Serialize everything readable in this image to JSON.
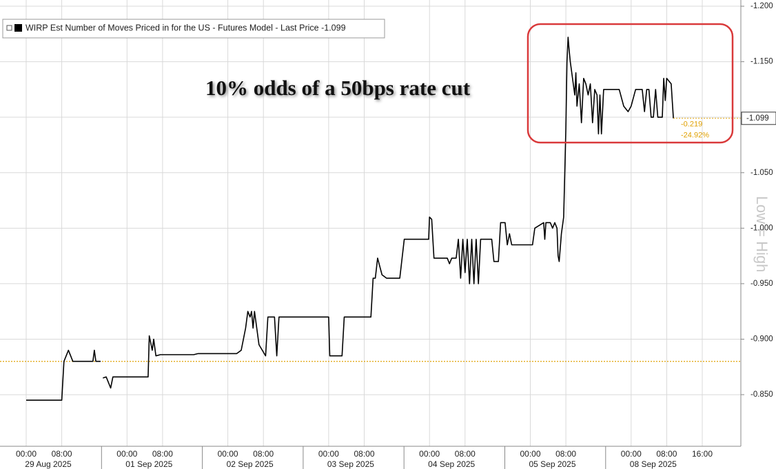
{
  "chart_data": {
    "type": "line",
    "series": [
      {
        "name": "WIRP Est Number of Moves Priced in for the US - Futures Model - Last Price -1.099",
        "color": "#000000",
        "values": [
          -0.845,
          -0.845,
          -0.88,
          -0.89,
          -0.88,
          -0.88,
          -0.89,
          -0.88,
          -0.88,
          null,
          -0.865,
          -0.866,
          -0.856,
          -0.866,
          -0.866,
          -0.903,
          -0.89,
          -0.9,
          -0.885,
          -0.886,
          -0.886,
          -0.887,
          -0.887,
          -0.89,
          -0.91,
          -0.925,
          -0.92,
          -0.925,
          -0.91,
          -0.925,
          -0.895,
          -0.885,
          -0.92,
          -0.92,
          -0.885,
          -0.92,
          -0.92,
          -0.885,
          -0.885,
          -0.92,
          -0.92,
          -0.955,
          -0.955,
          -0.973,
          -0.958,
          -0.955,
          -0.955,
          -0.99,
          -0.99,
          -1.01,
          -1.008,
          -0.973,
          -0.973,
          -0.968,
          -0.973,
          -0.973,
          -0.99,
          -0.955,
          -0.99,
          -0.96,
          -0.99,
          -0.95,
          -0.99,
          -0.95,
          -0.99,
          -0.95,
          -0.99,
          -0.99,
          -0.97,
          -0.97,
          -1.005,
          -1.005,
          -0.985,
          -0.995,
          -0.985,
          -0.985,
          -1.0,
          -1.005,
          -0.99,
          -1.005,
          -1.005,
          -1.0,
          -1.005,
          -1.0,
          -0.975,
          -0.97,
          -0.995,
          -1.01,
          -1.09,
          -1.15,
          -1.172,
          -1.16,
          -1.15,
          -1.12,
          -1.14,
          -1.11,
          -1.13,
          -1.095,
          -1.135,
          -1.13,
          -1.12,
          -1.13,
          -1.095,
          -1.125,
          -1.12,
          -1.085,
          -1.12,
          -1.085,
          -1.125,
          -1.125,
          -1.11,
          -1.105,
          -1.11,
          -1.125,
          -1.125,
          -1.105,
          -1.125,
          -1.125,
          -1.1,
          -1.1,
          -1.125,
          -1.1,
          -1.1,
          -1.135,
          -1.115,
          -1.135,
          -1.13,
          -1.099
        ]
      }
    ],
    "x": [
      "29 Aug 2025 00:00",
      "29 Aug 2025 08:00",
      "29 Aug 2025 08:30",
      "29 Aug 2025 09:30",
      "29 Aug 2025 10:30",
      "29 Aug 2025 15:00",
      "29 Aug 2025 15:20",
      "29 Aug 2025 15:40",
      "29 Aug 2025 16:45",
      null,
      "29 Aug 2025 17:15",
      "29 Aug 2025 18:00",
      "29 Aug 2025 19:00",
      "29 Aug 2025 19:30",
      "01 Sep 2025 04:45",
      "01 Sep 2025 05:00",
      "01 Sep 2025 05:40",
      "01 Sep 2025 06:00",
      "01 Sep 2025 06:30",
      "01 Sep 2025 07:30",
      "01 Sep 2025 15:00",
      "01 Sep 2025 16:00",
      "02 Sep 2025 02:00",
      "02 Sep 2025 03:00",
      "02 Sep 2025 04:00",
      "02 Sep 2025 04:30",
      "02 Sep 2025 05:00",
      "02 Sep 2025 05:20",
      "02 Sep 2025 05:40",
      "02 Sep 2025 06:00",
      "02 Sep 2025 07:00",
      "02 Sep 2025 08:30",
      "02 Sep 2025 09:00",
      "02 Sep 2025 10:30",
      "02 Sep 2025 11:00",
      "02 Sep 2025 11:30",
      "03 Sep 2025 00:00",
      "03 Sep 2025 00:15",
      "03 Sep 2025 03:00",
      "03 Sep 2025 03:30",
      "03 Sep 2025 09:30",
      "03 Sep 2025 10:00",
      "03 Sep 2025 10:30",
      "03 Sep 2025 11:00",
      "03 Sep 2025 12:00",
      "03 Sep 2025 13:00",
      "03 Sep 2025 16:00",
      "03 Sep 2025 17:00",
      "03 Sep 2025 22:30",
      "04 Sep 2025 00:00",
      "04 Sep 2025 00:30",
      "04 Sep 2025 01:00",
      "04 Sep 2025 04:00",
      "04 Sep 2025 04:30",
      "04 Sep 2025 05:00",
      "04 Sep 2025 06:00",
      "04 Sep 2025 06:30",
      "04 Sep 2025 07:00",
      "04 Sep 2025 07:30",
      "04 Sep 2025 08:00",
      "04 Sep 2025 08:30",
      "04 Sep 2025 09:00",
      "04 Sep 2025 09:30",
      "04 Sep 2025 10:00",
      "04 Sep 2025 10:30",
      "04 Sep 2025 11:00",
      "04 Sep 2025 11:30",
      "04 Sep 2025 14:00",
      "04 Sep 2025 14:30",
      "04 Sep 2025 15:30",
      "04 Sep 2025 16:00",
      "04 Sep 2025 17:00",
      "04 Sep 2025 17:30",
      "04 Sep 2025 18:00",
      "04 Sep 2025 18:30",
      "05 Sep 2025 00:30",
      "05 Sep 2025 01:00",
      "05 Sep 2025 03:00",
      "05 Sep 2025 03:15",
      "05 Sep 2025 03:30",
      "05 Sep 2025 04:30",
      "05 Sep 2025 05:00",
      "05 Sep 2025 05:30",
      "05 Sep 2025 06:00",
      "05 Sep 2025 06:15",
      "05 Sep 2025 06:30",
      "05 Sep 2025 07:00",
      "05 Sep 2025 07:30",
      "05 Sep 2025 08:00",
      "05 Sep 2025 08:15",
      "05 Sep 2025 08:30",
      "05 Sep 2025 08:45",
      "05 Sep 2025 09:00",
      "05 Sep 2025 10:00",
      "05 Sep 2025 10:15",
      "05 Sep 2025 10:30",
      "05 Sep 2025 11:00",
      "05 Sep 2025 11:30",
      "05 Sep 2025 12:00",
      "05 Sep 2025 12:30",
      "05 Sep 2025 13:00",
      "05 Sep 2025 13:30",
      "05 Sep 2025 14:00",
      "05 Sep 2025 14:30",
      "05 Sep 2025 15:00",
      "05 Sep 2025 15:20",
      "05 Sep 2025 15:40",
      "05 Sep 2025 16:00",
      "05 Sep 2025 16:30",
      "05 Sep 2025 20:00",
      "05 Sep 2025 21:00",
      "05 Sep 2025 22:00",
      "08 Sep 2025 00:00",
      "08 Sep 2025 01:00",
      "08 Sep 2025 02:30",
      "08 Sep 2025 03:00",
      "08 Sep 2025 03:30",
      "08 Sep 2025 04:00",
      "08 Sep 2025 04:30",
      "08 Sep 2025 05:00",
      "08 Sep 2025 05:30",
      "08 Sep 2025 06:00",
      "08 Sep 2025 07:00",
      "08 Sep 2025 07:20",
      "08 Sep 2025 07:40",
      "08 Sep 2025 08:00",
      "08 Sep 2025 09:00",
      "08 Sep 2025 09:30"
    ],
    "days": [
      "29 Aug 2025",
      "01 Sep 2025",
      "02 Sep 2025",
      "03 Sep 2025",
      "04 Sep 2025",
      "05 Sep 2025",
      "08 Sep 2025"
    ],
    "xticks": [
      {
        "value": "29 Aug 2025 00:00",
        "label": "00:00"
      },
      {
        "value": "29 Aug 2025 08:00",
        "label": "08:00"
      },
      {
        "value": "01 Sep 2025 00:00",
        "label": "00:00"
      },
      {
        "value": "01 Sep 2025 08:00",
        "label": "08:00"
      },
      {
        "value": "02 Sep 2025 00:00",
        "label": "00:00"
      },
      {
        "value": "02 Sep 2025 08:00",
        "label": "08:00"
      },
      {
        "value": "03 Sep 2025 00:00",
        "label": "00:00"
      },
      {
        "value": "03 Sep 2025 08:00",
        "label": "08:00"
      },
      {
        "value": "04 Sep 2025 00:00",
        "label": "00:00"
      },
      {
        "value": "04 Sep 2025 08:00",
        "label": "08:00"
      },
      {
        "value": "05 Sep 2025 00:00",
        "label": "00:00"
      },
      {
        "value": "05 Sep 2025 08:00",
        "label": "08:00"
      },
      {
        "value": "08 Sep 2025 00:00",
        "label": "00:00"
      },
      {
        "value": "08 Sep 2025 08:00",
        "label": "08:00"
      },
      {
        "value": "08 Sep 2025 16:00",
        "label": "16:00"
      }
    ],
    "ylim": [
      -0.8035,
      -1.2056
    ],
    "yticks": [
      {
        "value": -1.2,
        "label": "-1.200"
      },
      {
        "value": -1.15,
        "label": "-1.150"
      },
      {
        "value": -1.1,
        "label": "-1.100"
      },
      {
        "value": -1.05,
        "label": "-1.050"
      },
      {
        "value": -1.0,
        "label": "-1.000"
      },
      {
        "value": -0.95,
        "label": "-0.950"
      },
      {
        "value": -0.9,
        "label": "-0.900"
      },
      {
        "value": -0.85,
        "label": "-0.850"
      }
    ],
    "grid": true,
    "reference_line": {
      "value": -0.88,
      "color": "#e0a000"
    },
    "change_labels": [
      "-0.219",
      "-24.92%"
    ],
    "annotation": "10% odds of a 50bps rate cut",
    "axis_note": "Low = High",
    "legend_position": "upper left"
  }
}
